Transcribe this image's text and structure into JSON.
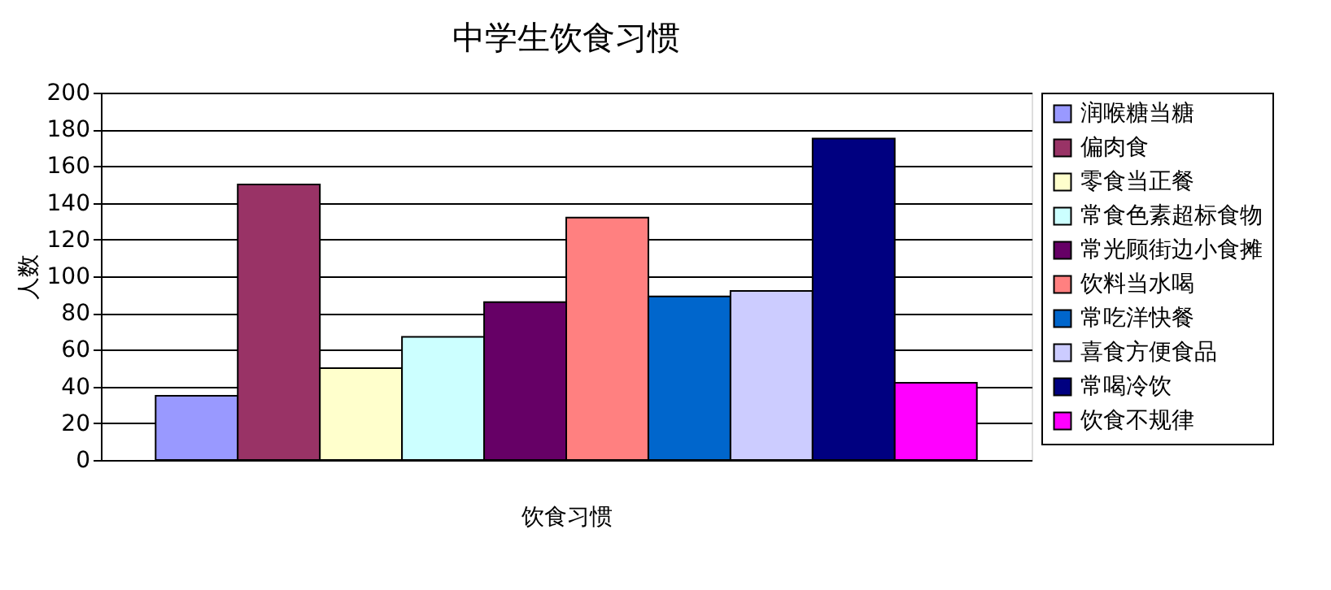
{
  "chart_data": {
    "type": "bar",
    "title": "中学生饮食习惯",
    "xlabel": "饮食习惯",
    "ylabel": "人数",
    "categories": [
      null
    ],
    "series": [
      {
        "name": "润喉糖当糖",
        "color": "#9999ff",
        "values": [
          35
        ]
      },
      {
        "name": "偏肉食",
        "color": "#993366",
        "values": [
          150
        ]
      },
      {
        "name": "零食当正餐",
        "color": "#ffffcc",
        "values": [
          50
        ]
      },
      {
        "name": "常食色素超标食物",
        "color": "#ccffff",
        "values": [
          67
        ]
      },
      {
        "name": "常光顾街边小食摊",
        "color": "#660066",
        "values": [
          86
        ]
      },
      {
        "name": "饮料当水喝",
        "color": "#ff8080",
        "values": [
          132
        ]
      },
      {
        "name": "常吃洋快餐",
        "color": "#0066cc",
        "values": [
          89
        ]
      },
      {
        "name": "喜食方便食品",
        "color": "#ccccff",
        "values": [
          92
        ]
      },
      {
        "name": "常喝冷饮",
        "color": "#000080",
        "values": [
          175
        ]
      },
      {
        "name": "饮食不规律",
        "color": "#ff00ff",
        "values": [
          42
        ]
      }
    ],
    "ylim": [
      0,
      200
    ],
    "yticks": [
      0,
      20,
      40,
      60,
      80,
      100,
      120,
      140,
      160,
      180,
      200
    ],
    "grid": "y",
    "legend": "right"
  }
}
